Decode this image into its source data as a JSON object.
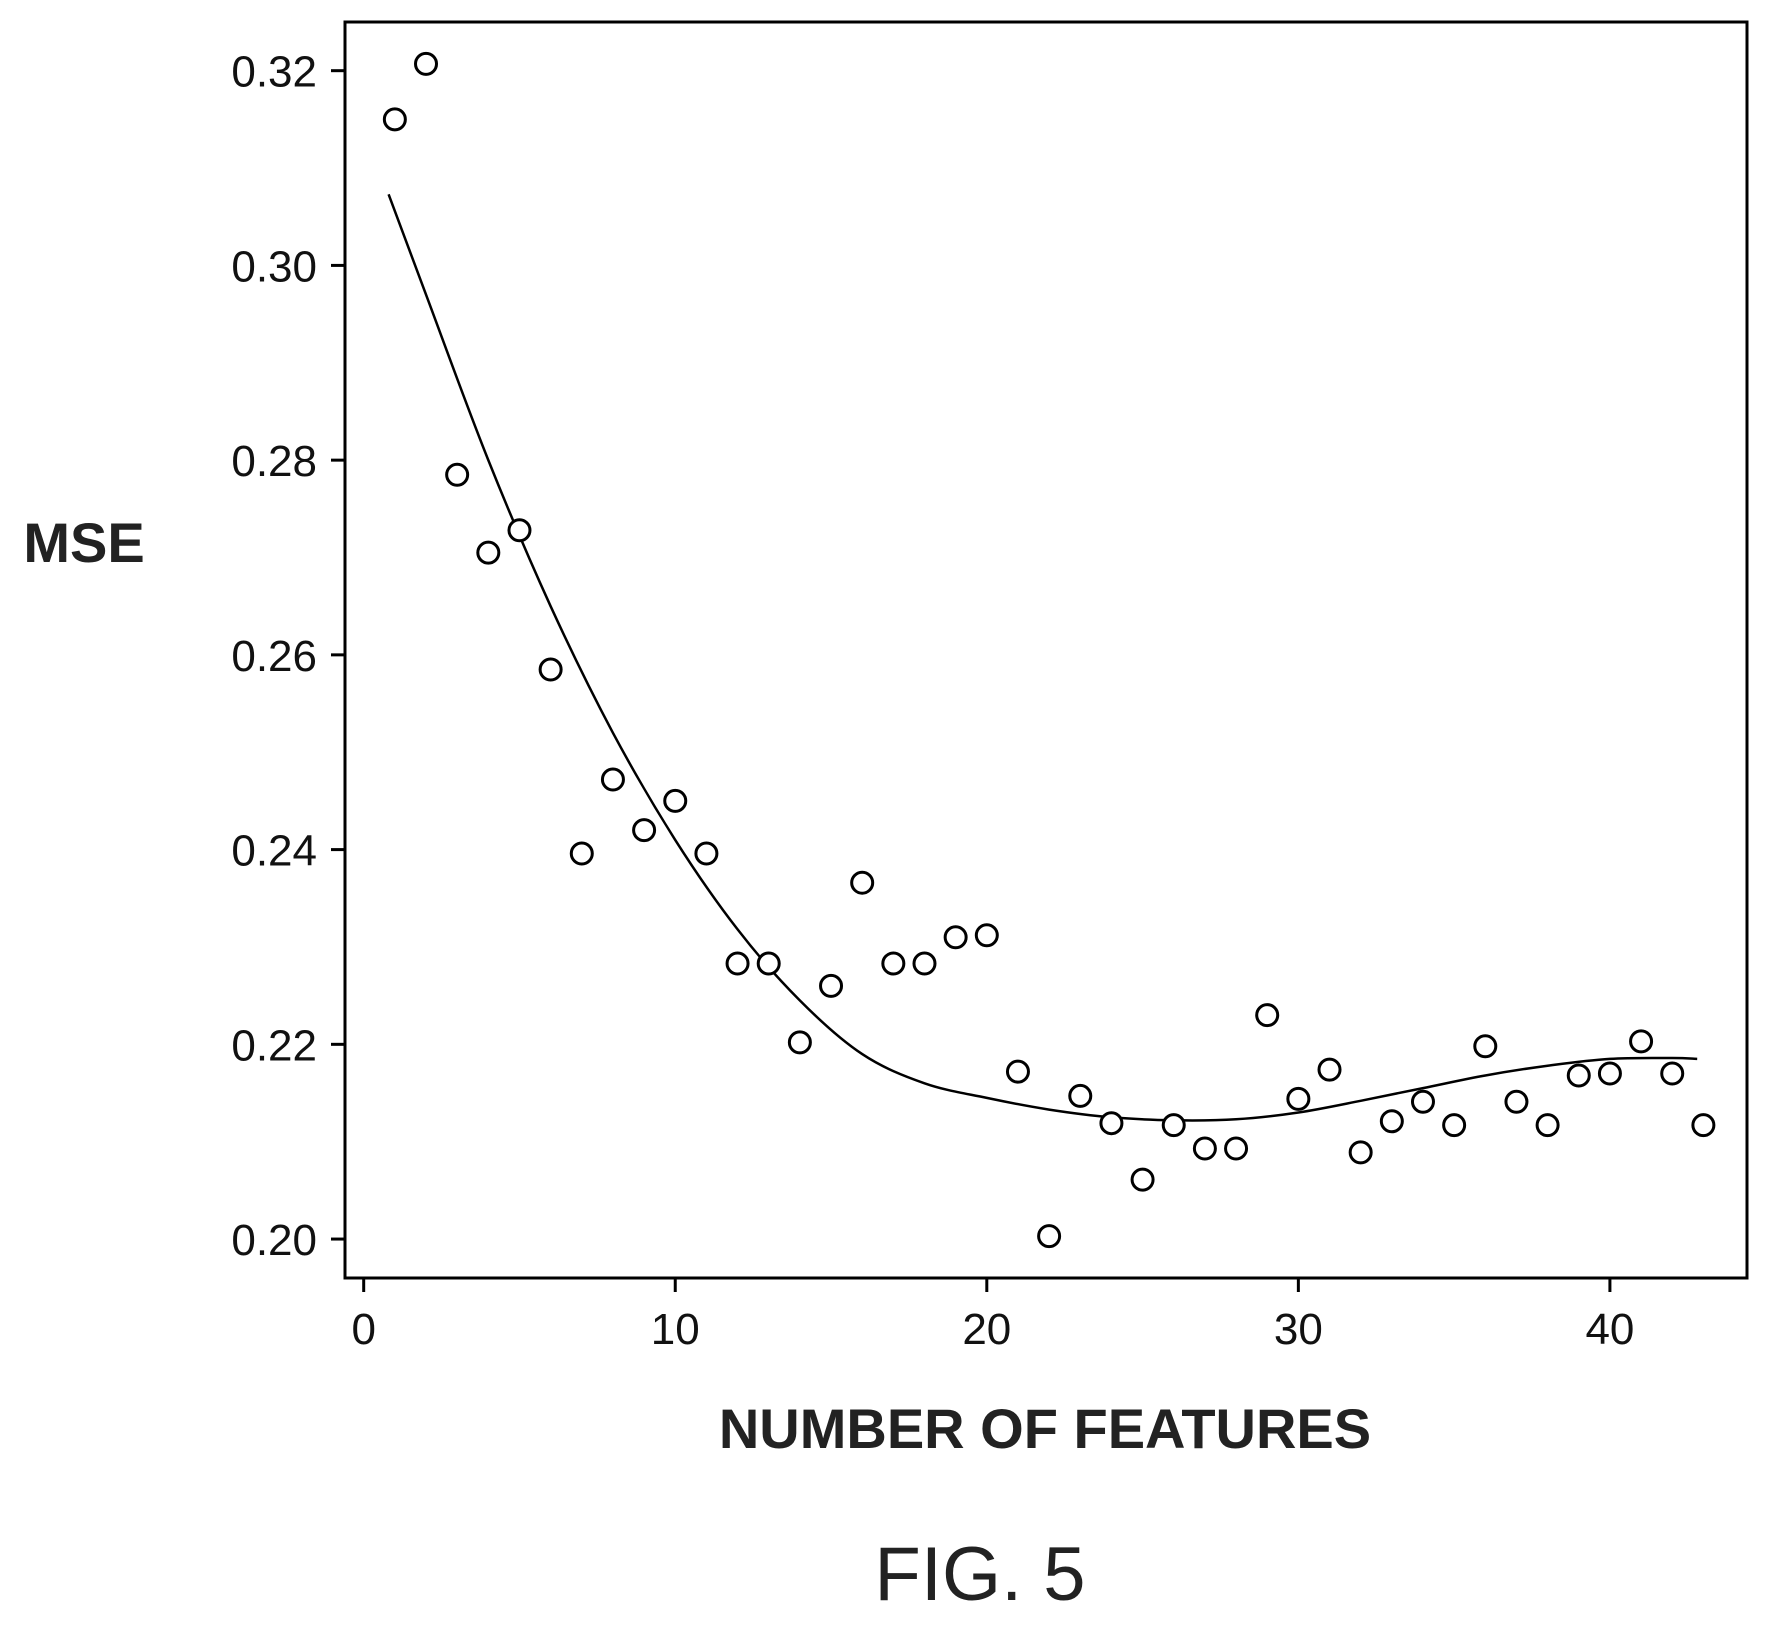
{
  "figure": {
    "caption": "FIG. 5"
  },
  "chart_data": {
    "type": "scatter",
    "title": "",
    "xlabel": "NUMBER OF FEATURES",
    "ylabel": "MSE",
    "xlim": [
      -0.6,
      44.4
    ],
    "ylim": [
      0.196,
      0.325
    ],
    "x_ticks": [
      0,
      10,
      20,
      30,
      40
    ],
    "x_tick_labels": [
      "0",
      "10",
      "20",
      "30",
      "40"
    ],
    "y_ticks": [
      0.2,
      0.22,
      0.24,
      0.26,
      0.28,
      0.3,
      0.32
    ],
    "y_tick_labels": [
      "0.20",
      "0.22",
      "0.24",
      "0.26",
      "0.28",
      "0.30",
      "0.32"
    ],
    "grid": false,
    "legend": "none",
    "series": [
      {
        "type": "scatter",
        "marker": "open-circle",
        "x": [
          1,
          2,
          3,
          4,
          5,
          6,
          7,
          8,
          9,
          10,
          11,
          12,
          13,
          14,
          15,
          16,
          17,
          18,
          19,
          20,
          21,
          22,
          23,
          24,
          25,
          26,
          27,
          28,
          29,
          30,
          31,
          32,
          33,
          34,
          35,
          36,
          37,
          38,
          39,
          40,
          41,
          42,
          43
        ],
        "y": [
          0.315,
          0.3207,
          0.2785,
          0.2705,
          0.2728,
          0.2585,
          0.2396,
          0.2472,
          0.242,
          0.245,
          0.2396,
          0.2283,
          0.2283,
          0.2202,
          0.226,
          0.2366,
          0.2283,
          0.2283,
          0.231,
          0.2312,
          0.2172,
          0.2003,
          0.2147,
          0.2119,
          0.2061,
          0.2117,
          0.2093,
          0.2093,
          0.223,
          0.2144,
          0.2174,
          0.2089,
          0.2121,
          0.2141,
          0.2117,
          0.2198,
          0.2141,
          0.2117,
          0.2168,
          0.217,
          0.2203,
          0.217,
          0.2117
        ]
      },
      {
        "type": "line",
        "style": "smooth-fit",
        "x": [
          0.8,
          2,
          4,
          6,
          8,
          10,
          12,
          14,
          16,
          18,
          20,
          22,
          24,
          26,
          28,
          30,
          32,
          34,
          36,
          38,
          40,
          42,
          42.8
        ],
        "y": [
          0.3073,
          0.297,
          0.28,
          0.265,
          0.252,
          0.241,
          0.2318,
          0.2245,
          0.219,
          0.216,
          0.2145,
          0.2133,
          0.2125,
          0.2122,
          0.2123,
          0.213,
          0.2142,
          0.2155,
          0.2168,
          0.2178,
          0.2185,
          0.2186,
          0.2185
        ]
      }
    ]
  }
}
